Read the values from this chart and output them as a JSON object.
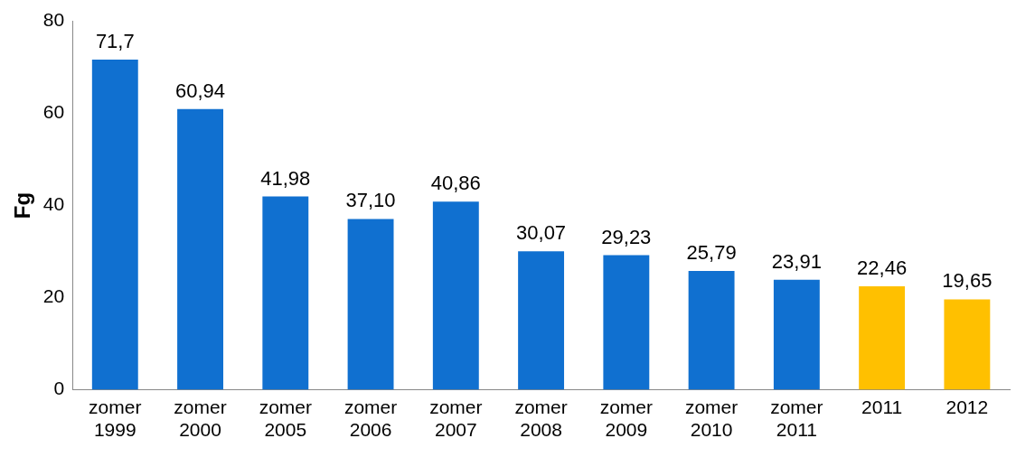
{
  "chart_data": {
    "type": "bar",
    "ylabel": "Fg",
    "categories": [
      "zomer 1999",
      "zomer 2000",
      "zomer 2005",
      "zomer 2006",
      "zomer 2007",
      "zomer 2008",
      "zomer 2009",
      "zomer 2010",
      "zomer 2011",
      "2011",
      "2012"
    ],
    "values": [
      71.7,
      60.94,
      41.98,
      37.1,
      40.86,
      30.07,
      29.23,
      25.79,
      23.91,
      22.46,
      19.65
    ],
    "value_labels": [
      "71,7",
      "60,94",
      "41,98",
      "37,10",
      "40,86",
      "30,07",
      "29,23",
      "25,79",
      "23,91",
      "22,46",
      "19,65"
    ],
    "colors": [
      "#1070d0",
      "#1070d0",
      "#1070d0",
      "#1070d0",
      "#1070d0",
      "#1070d0",
      "#1070d0",
      "#1070d0",
      "#1070d0",
      "#ffc000",
      "#ffc000"
    ],
    "ylim": [
      0,
      80
    ],
    "yticks": [
      0,
      20,
      40,
      60,
      80
    ],
    "grid": false,
    "legend": false
  }
}
